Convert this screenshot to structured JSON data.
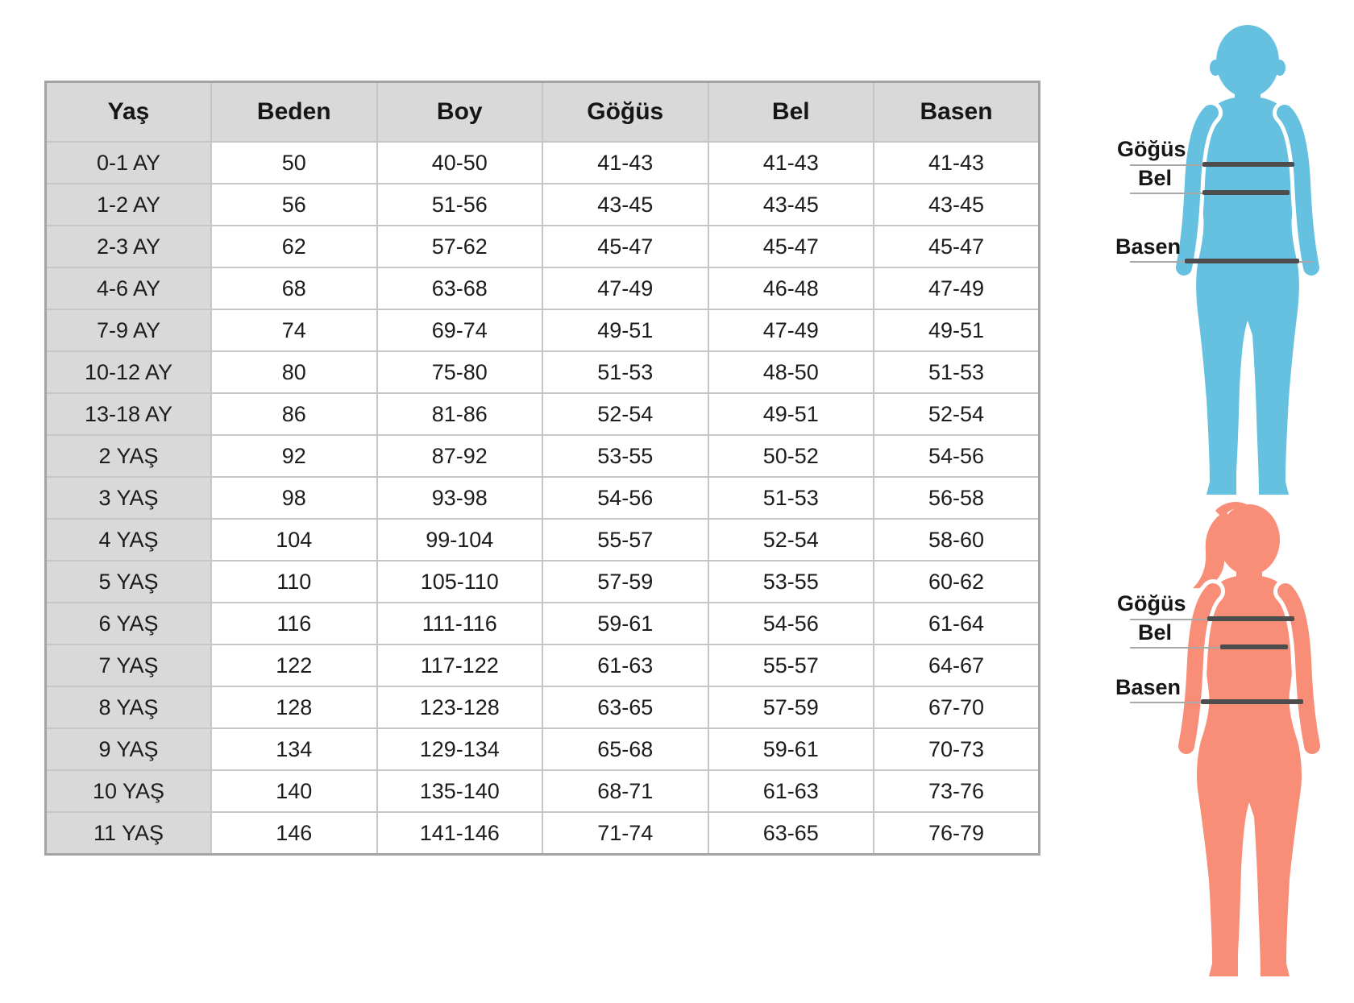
{
  "table": {
    "columns": [
      "Yaş",
      "Beden",
      "Boy",
      "Göğüs",
      "Bel",
      "Basen"
    ],
    "rows": [
      [
        "0-1 AY",
        "50",
        "40-50",
        "41-43",
        "41-43",
        "41-43"
      ],
      [
        "1-2 AY",
        "56",
        "51-56",
        "43-45",
        "43-45",
        "43-45"
      ],
      [
        "2-3 AY",
        "62",
        "57-62",
        "45-47",
        "45-47",
        "45-47"
      ],
      [
        "4-6 AY",
        "68",
        "63-68",
        "47-49",
        "46-48",
        "47-49"
      ],
      [
        "7-9 AY",
        "74",
        "69-74",
        "49-51",
        "47-49",
        "49-51"
      ],
      [
        "10-12 AY",
        "80",
        "75-80",
        "51-53",
        "48-50",
        "51-53"
      ],
      [
        "13-18 AY",
        "86",
        "81-86",
        "52-54",
        "49-51",
        "52-54"
      ],
      [
        "2 YAŞ",
        "92",
        "87-92",
        "53-55",
        "50-52",
        "54-56"
      ],
      [
        "3 YAŞ",
        "98",
        "93-98",
        "54-56",
        "51-53",
        "56-58"
      ],
      [
        "4 YAŞ",
        "104",
        "99-104",
        "55-57",
        "52-54",
        "58-60"
      ],
      [
        "5 YAŞ",
        "110",
        "105-110",
        "57-59",
        "53-55",
        "60-62"
      ],
      [
        "6 YAŞ",
        "116",
        "111-116",
        "59-61",
        "54-56",
        "61-64"
      ],
      [
        "7 YAŞ",
        "122",
        "117-122",
        "61-63",
        "55-57",
        "64-67"
      ],
      [
        "8 YAŞ",
        "128",
        "123-128",
        "63-65",
        "57-59",
        "67-70"
      ],
      [
        "9 YAŞ",
        "134",
        "129-134",
        "65-68",
        "59-61",
        "70-73"
      ],
      [
        "10 YAŞ",
        "140",
        "135-140",
        "68-71",
        "61-63",
        "73-76"
      ],
      [
        "11 YAŞ",
        "146",
        "141-146",
        "71-74",
        "63-65",
        "76-79"
      ]
    ]
  },
  "figures": {
    "boy": {
      "measurements": [
        {
          "label": "Göğüs"
        },
        {
          "label": "Bel"
        },
        {
          "label": "Basen"
        }
      ]
    },
    "girl": {
      "measurements": [
        {
          "label": "Göğüs"
        },
        {
          "label": "Bel"
        },
        {
          "label": "Basen"
        }
      ]
    }
  },
  "colors": {
    "header_gray": "#d9d9d9",
    "figure_blue": "#66c0df",
    "figure_salmon": "#f88e78",
    "band_dark": "#4d4d4d",
    "leader_gray": "#a8a8a8"
  }
}
